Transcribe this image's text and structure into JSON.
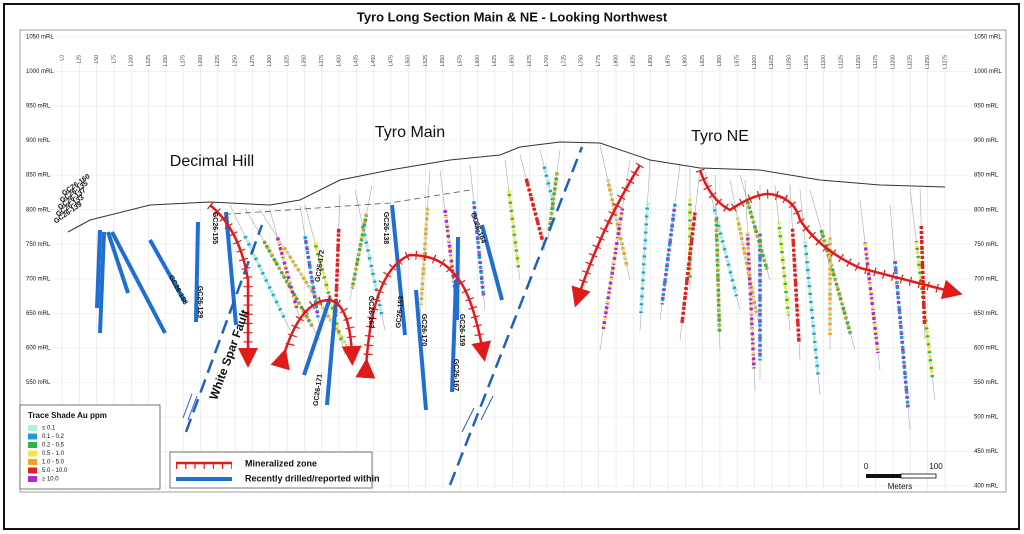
{
  "title": "Tyro Long Section Main & NE - Looking Northwest",
  "elevations": [
    "1050 mRL",
    "1000 mRL",
    "950 mRL",
    "900 mRL",
    "850 mRL",
    "800 mRL",
    "750 mRL",
    "700 mRL",
    "650 mRL",
    "600 mRL",
    "550 mRL",
    "500 mRL",
    "450 mRL",
    "400 mRL"
  ],
  "section_lines": [
    "L0",
    "L25",
    "L50",
    "L75",
    "L100",
    "L125",
    "L150",
    "L175",
    "L200",
    "L225",
    "L250",
    "L275",
    "L300",
    "L325",
    "L350",
    "L375",
    "L400",
    "L425",
    "L450",
    "L475",
    "L500",
    "L525",
    "L550",
    "L575",
    "L600",
    "L625",
    "L650",
    "L675",
    "L700",
    "L725",
    "L750",
    "L775",
    "L800",
    "L825",
    "L850",
    "L875",
    "L900",
    "L925",
    "L950",
    "L975",
    "L1000",
    "L1025",
    "L1050",
    "L1075",
    "L1100",
    "L1125",
    "L1150",
    "L1175",
    "L1200",
    "L1225",
    "L1250",
    "L1275"
  ],
  "zones": [
    "Decimal Hill",
    "Tyro Main",
    "Tyro NE"
  ],
  "fault": "White Spar Fault",
  "holes": [
    "GC26-160",
    "GC26-135",
    "GC26-137",
    "GC26-133",
    "GC26-139",
    "GC26-158",
    "GC26-129",
    "GC26-155",
    "GC26-172",
    "GC26-171",
    "GC26-138",
    "GC26-163",
    "GC26-153",
    "GC26-170",
    "GC26-164",
    "GC26-159",
    "GC26-167"
  ],
  "legend": {
    "title": "Trace Shade Au ppm",
    "items": [
      {
        "label": "≤ 0.1",
        "color": "#a8f0e0"
      },
      {
        "label": "0.1 - 0.2",
        "color": "#1f9bd6"
      },
      {
        "label": "0.2 - 0.5",
        "color": "#2fb34a"
      },
      {
        "label": "0.5 - 1.0",
        "color": "#f4e842"
      },
      {
        "label": "1.0 - 5.0",
        "color": "#f7a21b"
      },
      {
        "label": "5.0 - 10.0",
        "color": "#e02020"
      },
      {
        "label": "≥ 10.0",
        "color": "#b02ad0"
      }
    ]
  },
  "key": [
    "Mineralized zone",
    "Recently drilled/reported within"
  ],
  "scale": {
    "ticks": [
      "0",
      "100"
    ],
    "unit": "Meters"
  }
}
